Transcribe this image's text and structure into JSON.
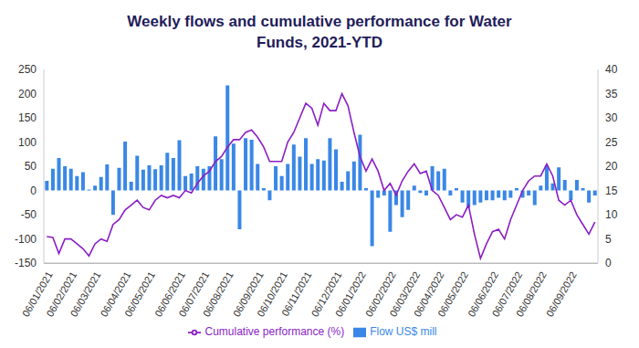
{
  "chart_data": {
    "type": "bar",
    "title": "Weekly flows and cumulative performance for Water Funds, 2021-YTD",
    "categories": [
      "06/01/2021",
      null,
      null,
      null,
      "06/02/2021",
      null,
      null,
      null,
      "06/03/2021",
      null,
      null,
      null,
      null,
      "06/04/2021",
      null,
      null,
      null,
      "06/05/2021",
      null,
      null,
      null,
      null,
      "06/06/2021",
      null,
      null,
      null,
      "06/07/2021",
      null,
      null,
      null,
      "06/08/2021",
      null,
      null,
      null,
      null,
      "06/09/2021",
      null,
      null,
      null,
      "06/10/2021",
      null,
      null,
      null,
      "06/11/2021",
      null,
      null,
      null,
      null,
      "06/12/2021",
      null,
      null,
      null,
      "06/01/2022",
      null,
      null,
      null,
      null,
      "06/02/2022",
      null,
      null,
      null,
      "06/03/2022",
      null,
      null,
      null,
      "06/04/2022",
      null,
      null,
      null,
      "06/05/2022",
      null,
      null,
      null,
      null,
      "06/06/2022",
      null,
      null,
      null,
      "06/07/2022",
      null,
      null,
      null,
      "06/08/2022",
      null,
      null,
      null,
      null,
      "06/09/2022",
      null,
      null,
      null,
      null
    ],
    "series": [
      {
        "name": "Flow US$ mill",
        "type": "bar",
        "color": "#3a87e6",
        "values": [
          20,
          45,
          67,
          50,
          45,
          30,
          38,
          2,
          10,
          28,
          54,
          -50,
          47,
          101,
          18,
          72,
          43,
          52,
          44,
          52,
          78,
          67,
          104,
          30,
          35,
          50,
          45,
          50,
          112,
          65,
          217,
          97,
          -80,
          108,
          105,
          55,
          5,
          -20,
          50,
          30,
          55,
          95,
          70,
          108,
          55,
          65,
          62,
          108,
          85,
          18,
          40,
          60,
          115,
          5,
          -115,
          -15,
          -10,
          -85,
          -30,
          -55,
          -40,
          10,
          -5,
          -10,
          50,
          40,
          45,
          -10,
          5,
          -25,
          -35,
          -30,
          -25,
          -20,
          -20,
          -15,
          -20,
          -15,
          5,
          -15,
          -10,
          -30,
          10,
          52,
          15,
          48,
          22,
          -20,
          22,
          5,
          -25,
          -10
        ]
      },
      {
        "name": "Cumulative performance (%)",
        "type": "line",
        "axis": "y2",
        "color": "#8a1fc4",
        "values": [
          5.5,
          5.3,
          2,
          5,
          5,
          4,
          3,
          1.5,
          4,
          5,
          4.5,
          8,
          9,
          11,
          12,
          13,
          11.5,
          11,
          13,
          14,
          13.5,
          14,
          13.5,
          15,
          14.5,
          16.5,
          18,
          19,
          21,
          22,
          24,
          25.5,
          25.5,
          27,
          27.5,
          26,
          24,
          21,
          21,
          21,
          25,
          27,
          30,
          33,
          32,
          28.5,
          33,
          31.5,
          31.5,
          35,
          32.5,
          27,
          22,
          19,
          21.5,
          19,
          15,
          16.5,
          14,
          17,
          19,
          20.5,
          18.5,
          19,
          15,
          14,
          11.5,
          9,
          10,
          9.5,
          12,
          6,
          1,
          4,
          6.5,
          7,
          5,
          9,
          12,
          15,
          17,
          18,
          18,
          20.5,
          18,
          13,
          12,
          13,
          10,
          8,
          6,
          8.5
        ]
      }
    ],
    "ylim": [
      -150,
      250
    ],
    "yticks": [
      -150,
      -100,
      -50,
      0,
      50,
      100,
      150,
      200,
      250
    ],
    "y2lim": [
      0,
      40
    ],
    "y2ticks": [
      0,
      5,
      10,
      15,
      20,
      25,
      30,
      35,
      40
    ],
    "grid": false,
    "legend": "bottom"
  }
}
